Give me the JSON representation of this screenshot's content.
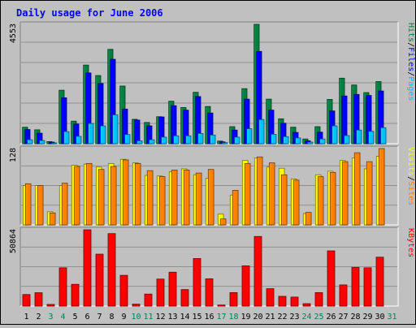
{
  "title": "Daily usage for June 2006",
  "colors": {
    "background": "#c0c0c0",
    "plot_background": "#c0c0c0",
    "title": "#0000ff",
    "hits": "#008040",
    "files": "#0000ff",
    "pages": "#00c0ff",
    "visits": "#ffff00",
    "sites": "#ff8000",
    "kbytes": "#ff0000",
    "weekend_label": "#00805c",
    "weekday_label": "#000000"
  },
  "chart_data": [
    {
      "type": "bar",
      "name": "hits-files-pages",
      "ymax_label": "4553",
      "ylim": [
        0,
        4553
      ],
      "legend": [
        {
          "text": "Pages",
          "color": "#00c0ff"
        },
        {
          "text": "/",
          "color": "#000000"
        },
        {
          "text": "Files",
          "color": "#0000ff"
        },
        {
          "text": "/",
          "color": "#000000"
        },
        {
          "text": "Hits",
          "color": "#008040"
        }
      ],
      "categories": [
        "1",
        "2",
        "3",
        "4",
        "5",
        "6",
        "7",
        "8",
        "9",
        "10",
        "11",
        "12",
        "13",
        "14",
        "15",
        "16",
        "17",
        "18",
        "19",
        "20",
        "21",
        "22",
        "23",
        "24",
        "25",
        "26",
        "27",
        "28",
        "29",
        "30",
        "31"
      ],
      "series": [
        {
          "name": "Hits",
          "values": [
            630,
            530,
            80,
            2040,
            860,
            3000,
            2600,
            3600,
            2200,
            930,
            810,
            1030,
            1620,
            1380,
            1960,
            1420,
            100,
            650,
            2100,
            4553,
            1700,
            950,
            630,
            180,
            650,
            1690,
            2500,
            2240,
            1950,
            2370,
            0
          ]
        },
        {
          "name": "Files",
          "values": [
            540,
            400,
            60,
            1750,
            750,
            2700,
            2300,
            3220,
            1320,
            900,
            680,
            1020,
            1450,
            1280,
            1800,
            1170,
            70,
            520,
            1700,
            3520,
            1280,
            780,
            430,
            110,
            440,
            1250,
            1820,
            1880,
            1840,
            2010,
            0
          ]
        },
        {
          "name": "Pages",
          "values": [
            150,
            120,
            30,
            460,
            280,
            770,
            680,
            1100,
            350,
            110,
            150,
            250,
            300,
            300,
            390,
            330,
            40,
            250,
            570,
            920,
            360,
            270,
            220,
            60,
            180,
            680,
            310,
            520,
            470,
            610,
            0
          ]
        }
      ]
    },
    {
      "type": "bar",
      "name": "visits-sites",
      "ymax_label": "128",
      "ylim": [
        0,
        128
      ],
      "legend": [
        {
          "text": "Sites",
          "color": "#ff8000"
        },
        {
          "text": "/",
          "color": "#000000"
        },
        {
          "text": "Visits",
          "color": "#ffff00"
        }
      ],
      "categories": [
        "1",
        "2",
        "3",
        "4",
        "5",
        "6",
        "7",
        "8",
        "9",
        "10",
        "11",
        "12",
        "13",
        "14",
        "15",
        "16",
        "17",
        "18",
        "19",
        "20",
        "21",
        "22",
        "23",
        "24",
        "25",
        "26",
        "27",
        "28",
        "29",
        "30",
        "31"
      ],
      "series": [
        {
          "name": "Visits",
          "values": [
            66,
            66,
            22,
            66,
            100,
            102,
            97,
            103,
            110,
            104,
            83,
            82,
            89,
            94,
            84,
            78,
            18,
            50,
            108,
            112,
            97,
            95,
            77,
            19,
            84,
            90,
            108,
            112,
            94,
            115,
            0
          ]
        },
        {
          "name": "Sites",
          "values": [
            69,
            66,
            20,
            70,
            98,
            103,
            93,
            98,
            109,
            103,
            91,
            81,
            92,
            92,
            87,
            93,
            10,
            58,
            103,
            114,
            104,
            84,
            75,
            21,
            81,
            88,
            106,
            121,
            106,
            128,
            0
          ]
        }
      ]
    },
    {
      "type": "bar",
      "name": "kbytes",
      "ymax_label": "50864",
      "ylim": [
        0,
        50864
      ],
      "legend": [
        {
          "text": "KBytes",
          "color": "#ff0000"
        }
      ],
      "categories": [
        "1",
        "2",
        "3",
        "4",
        "5",
        "6",
        "7",
        "8",
        "9",
        "10",
        "11",
        "12",
        "13",
        "14",
        "15",
        "16",
        "17",
        "18",
        "19",
        "20",
        "21",
        "22",
        "23",
        "24",
        "25",
        "26",
        "27",
        "28",
        "29",
        "30",
        "31"
      ],
      "series": [
        {
          "name": "KBytes",
          "values": [
            7700,
            8900,
            1100,
            25500,
            14500,
            50864,
            34600,
            48300,
            20500,
            1300,
            8000,
            18000,
            22600,
            11000,
            31700,
            18200,
            700,
            9000,
            26800,
            46400,
            11600,
            6500,
            6000,
            1600,
            9000,
            36800,
            14100,
            25800,
            25500,
            32600,
            0
          ]
        }
      ]
    }
  ],
  "day_labels": [
    "1",
    "2",
    "3",
    "4",
    "5",
    "6",
    "7",
    "8",
    "9",
    "10",
    "11",
    "12",
    "13",
    "14",
    "15",
    "16",
    "17",
    "18",
    "19",
    "20",
    "21",
    "22",
    "23",
    "24",
    "25",
    "26",
    "27",
    "28",
    "29",
    "30",
    "31"
  ],
  "weekend_days": [
    3,
    4,
    10,
    11,
    17,
    18,
    24,
    25,
    31
  ]
}
